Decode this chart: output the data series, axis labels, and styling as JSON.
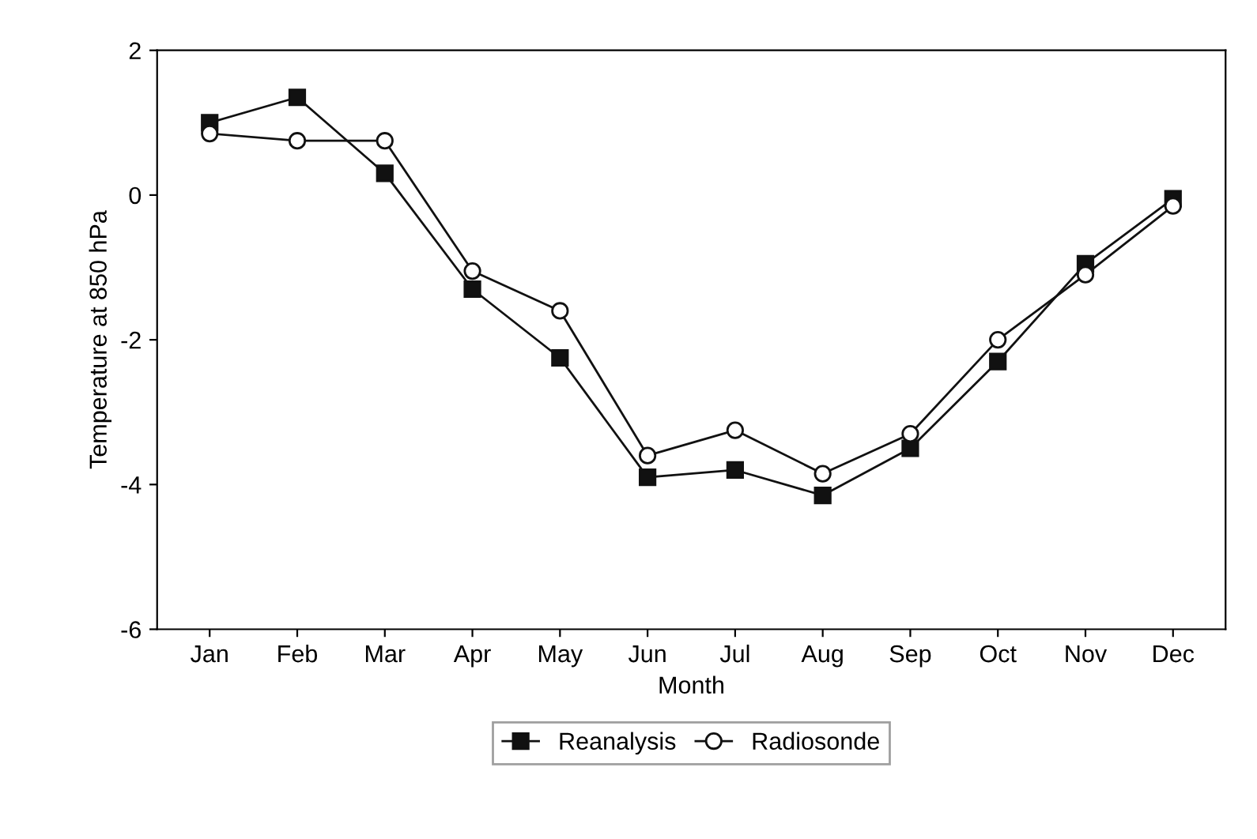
{
  "chart_data": {
    "type": "line",
    "xlabel": "Month",
    "ylabel": "Temperature at 850 hPa",
    "categories": [
      "Jan",
      "Feb",
      "Mar",
      "Apr",
      "May",
      "Jun",
      "Jul",
      "Aug",
      "Sep",
      "Oct",
      "Nov",
      "Dec"
    ],
    "series": [
      {
        "name": "Reanalysis",
        "color": "#111111",
        "marker": "square",
        "values": [
          1.0,
          1.35,
          0.3,
          -1.3,
          -2.25,
          -3.9,
          -3.8,
          -4.15,
          -3.5,
          -2.3,
          -0.95,
          -0.05
        ]
      },
      {
        "name": "Radiosonde",
        "color": "#111111",
        "marker": "circle",
        "values": [
          0.85,
          0.75,
          0.75,
          -1.05,
          -1.6,
          -3.6,
          -3.25,
          -3.85,
          -3.3,
          -2.0,
          -1.1,
          -0.15
        ]
      }
    ],
    "ylim": [
      -6,
      2
    ],
    "yticks": [
      -6,
      -4,
      -2,
      0,
      2
    ],
    "grid": false,
    "legend": "bottom",
    "line_style": "solid"
  }
}
